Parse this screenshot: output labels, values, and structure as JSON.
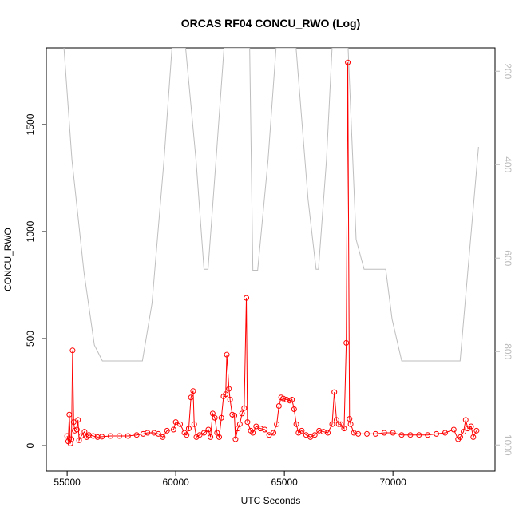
{
  "chart_data": {
    "type": "line",
    "title": "ORCAS RF04 CONCU_RWO (Log)",
    "x_label": "UTC Seconds",
    "y_label": "CONCU_RWO",
    "xlim": [
      54040,
      74700
    ],
    "xticks": [
      55000,
      60000,
      65000,
      70000
    ],
    "ylim": [
      -119,
      1858
    ],
    "yticks": [
      0,
      500,
      1000,
      1500
    ],
    "y2lim": [
      1056,
      150
    ],
    "y2ticks": [
      200,
      400,
      600,
      800,
      1000
    ],
    "series": [
      {
        "color": "#ff0000",
        "markers": true,
        "x": [
          55000,
          55050,
          55100,
          55150,
          55200,
          55250,
          55300,
          55350,
          55450,
          55500,
          55550,
          55650,
          55800,
          55900,
          56000,
          56200,
          56400,
          56600,
          57000,
          57400,
          57800,
          58200,
          58500,
          58700,
          59000,
          59200,
          59400,
          59600,
          59900,
          60000,
          60200,
          60400,
          60500,
          60600,
          60700,
          60800,
          60850,
          60950,
          61100,
          61300,
          61500,
          61600,
          61700,
          61800,
          61900,
          62000,
          62100,
          62200,
          62300,
          62350,
          62450,
          62500,
          62600,
          62700,
          62750,
          62850,
          62950,
          63050,
          63150,
          63250,
          63300,
          63450,
          63550,
          63700,
          63900,
          64100,
          64300,
          64500,
          64650,
          64750,
          64850,
          64950,
          65100,
          65250,
          65350,
          65450,
          65550,
          65650,
          65800,
          66000,
          66200,
          66400,
          66600,
          66800,
          67000,
          67200,
          67300,
          67400,
          67500,
          67600,
          67750,
          67850,
          67920,
          68000,
          68050,
          68200,
          68400,
          68800,
          69200,
          69600,
          70000,
          70400,
          70800,
          71200,
          71600,
          72000,
          72400,
          72800,
          73000,
          73100,
          73250,
          73350,
          73450,
          73600,
          73700,
          73850
        ],
        "values": [
          45,
          20,
          145,
          10,
          30,
          445,
          110,
          70,
          75,
          120,
          25,
          45,
          65,
          40,
          50,
          45,
          40,
          42,
          45,
          45,
          45,
          50,
          55,
          60,
          60,
          55,
          40,
          70,
          75,
          110,
          100,
          60,
          50,
          80,
          225,
          255,
          100,
          40,
          50,
          60,
          75,
          40,
          150,
          130,
          60,
          40,
          130,
          230,
          240,
          425,
          265,
          215,
          145,
          140,
          30,
          80,
          100,
          150,
          175,
          690,
          110,
          70,
          60,
          90,
          80,
          75,
          50,
          60,
          100,
          185,
          225,
          220,
          215,
          210,
          215,
          170,
          100,
          60,
          70,
          50,
          40,
          50,
          70,
          65,
          60,
          100,
          250,
          120,
          100,
          100,
          80,
          480,
          1790,
          125,
          100,
          60,
          55,
          55,
          55,
          60,
          60,
          50,
          50,
          50,
          50,
          55,
          60,
          75,
          30,
          40,
          65,
          120,
          80,
          90,
          40,
          70
        ]
      },
      {
        "color": "#bebebe",
        "axis": "y2",
        "x": [
          54853,
          55221,
          55774,
          56253,
          56621,
          58464,
          58906,
          59459,
          59827,
          60454,
          60933,
          61301,
          61486,
          61854,
          62223,
          63402,
          63549,
          63770,
          64249,
          64618,
          65539,
          66092,
          66460,
          66571,
          66939,
          67197,
          67934,
          68303,
          68671,
          69666,
          69961,
          70403,
          73093,
          73941
        ],
        "values": [
          150,
          390,
          630,
          786,
          820,
          820,
          697,
          390,
          150,
          150,
          390,
          624,
          624,
          390,
          150,
          150,
          626,
          626,
          390,
          150,
          150,
          475,
          624,
          624,
          390,
          150,
          150,
          560,
          624,
          624,
          731,
          820,
          820,
          362
        ]
      }
    ]
  }
}
